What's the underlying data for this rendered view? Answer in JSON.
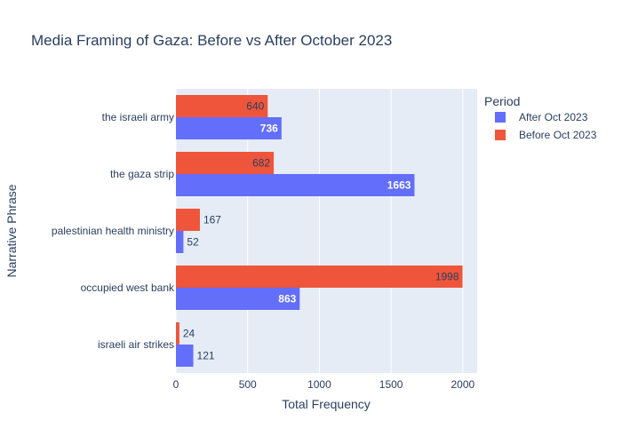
{
  "chart_data": {
    "type": "bar",
    "orientation": "horizontal",
    "barmode": "group",
    "title": "Media Framing of Gaza: Before vs After October 2023",
    "xlabel": "Total Frequency",
    "ylabel": "Narrative Phrase",
    "xlim": [
      0,
      2100
    ],
    "xticks": [
      0,
      500,
      1000,
      1500,
      2000
    ],
    "categories": [
      "the israeli army",
      "the gaza strip",
      "palestinian health ministry",
      "occupied west bank",
      "israeli air strikes"
    ],
    "series": [
      {
        "name": "After Oct 2023",
        "color": "#636efa",
        "values": [
          736,
          1663,
          52,
          863,
          121
        ]
      },
      {
        "name": "Before Oct 2023",
        "color": "#ef553b",
        "values": [
          640,
          682,
          167,
          1998,
          24
        ]
      }
    ],
    "legend": {
      "title": "Period",
      "placement": "top-right"
    },
    "grid": true,
    "background": "#e5ecf6"
  }
}
